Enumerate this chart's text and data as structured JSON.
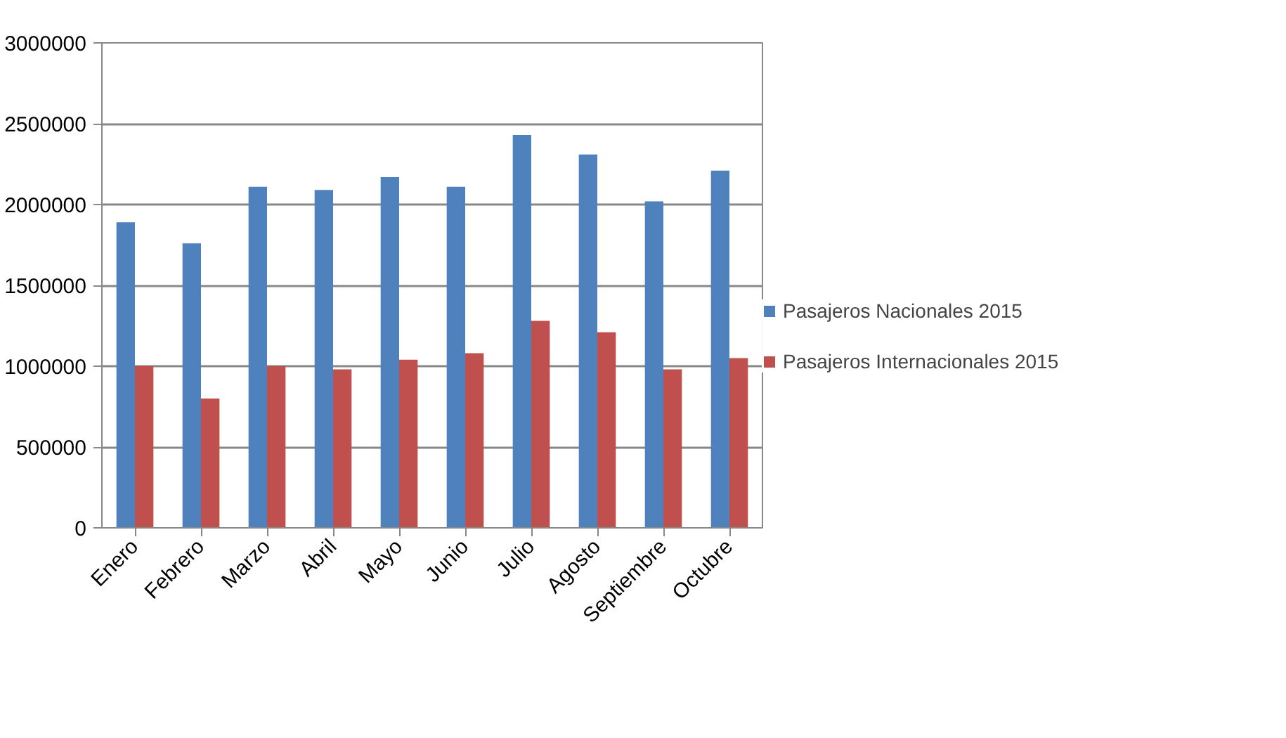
{
  "chart_data": {
    "type": "bar",
    "categories": [
      "Enero",
      "Febrero",
      "Marzo",
      "Abril",
      "Mayo",
      "Junio",
      "Julio",
      "Agosto",
      "Septiembre",
      "Octubre"
    ],
    "series": [
      {
        "name": "Pasajeros Nacionales 2015",
        "color": "#4f81bd",
        "values": [
          1890000,
          1760000,
          2110000,
          2090000,
          2170000,
          2110000,
          2430000,
          2310000,
          2020000,
          2210000
        ]
      },
      {
        "name": "Pasajeros Internacionales 2015",
        "color": "#c0504d",
        "values": [
          1000000,
          800000,
          1000000,
          980000,
          1040000,
          1080000,
          1280000,
          1210000,
          980000,
          1050000
        ]
      }
    ],
    "ylim": [
      0,
      3000000
    ],
    "yticks": [
      0,
      500000,
      1000000,
      1500000,
      2000000,
      2500000,
      3000000
    ],
    "grid": "y",
    "legend": "right"
  }
}
